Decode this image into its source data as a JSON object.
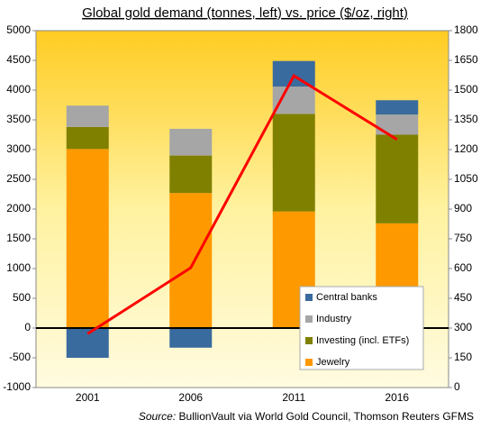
{
  "chart_data": {
    "type": "stacked_bar_line",
    "title": "Global gold demand (tonnes, left) vs. price ($/oz, right)",
    "categories": [
      "2001",
      "2006",
      "2011",
      "2016"
    ],
    "series": [
      {
        "name": "Jewelry",
        "color": "#ff9900",
        "values": [
          3010,
          2270,
          1960,
          1760
        ]
      },
      {
        "name": "Investing (incl. ETFs)",
        "color": "#808000",
        "values": [
          370,
          630,
          1640,
          1490
        ]
      },
      {
        "name": "Industry",
        "color": "#a6a6a6",
        "values": [
          360,
          450,
          460,
          340
        ]
      },
      {
        "name": "Central banks",
        "color": "#3a6b9e",
        "values": [
          -500,
          -330,
          430,
          240
        ]
      },
      {
        "name": "Price",
        "color": "#ff0000",
        "type": "line",
        "axis": "y2",
        "values": [
          271,
          604,
          1572,
          1251
        ]
      }
    ],
    "ylim": [
      -1000,
      5000
    ],
    "yticks": [
      -1000,
      -500,
      0,
      500,
      1000,
      1500,
      2000,
      2500,
      3000,
      3500,
      4000,
      4500,
      5000
    ],
    "y2lim": [
      0,
      1800
    ],
    "y2ticks": [
      0,
      150,
      300,
      450,
      600,
      750,
      900,
      1050,
      1200,
      1350,
      1500,
      1650,
      1800
    ],
    "legend": "lower right",
    "grid": false,
    "source_label": "Source:",
    "source": "BullionVault via World Gold Council, Thomson Reuters GFMS"
  }
}
